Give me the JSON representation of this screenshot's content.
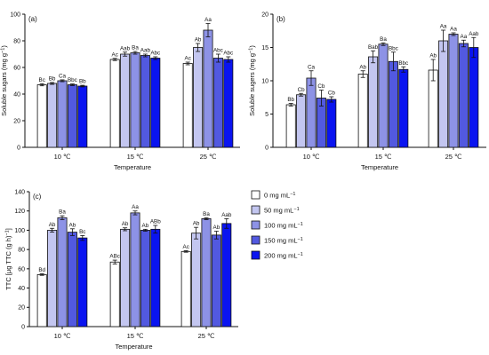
{
  "legend": {
    "entries": [
      {
        "label": "0 mg mL",
        "sup": "−1",
        "color": "#ffffff"
      },
      {
        "label": "50 mg mL",
        "sup": "−1",
        "color": "#c3c6f0"
      },
      {
        "label": "100 mg mL",
        "sup": "−1",
        "color": "#8d92e6"
      },
      {
        "label": "150 mg mL",
        "sup": "−1",
        "color": "#5259e0"
      },
      {
        "label": "200 mg mL",
        "sup": "−1",
        "color": "#0a14f0"
      }
    ]
  },
  "chart_data": [
    {
      "type": "bar",
      "panel_label": "(a)",
      "ylabel": "Soluble sugars (mg g",
      "ylabel_sup": "−1",
      "ylabel_end": ")",
      "xlabel": "Temperature",
      "categories": [
        "10 ℃",
        "15 ℃",
        "25 ℃"
      ],
      "ylim": [
        0,
        100
      ],
      "yticks": [
        0,
        20,
        40,
        60,
        80,
        100
      ],
      "series": [
        {
          "name": "0 mg mL−1",
          "values": [
            47,
            66,
            63
          ],
          "errors": [
            0.8,
            0.8,
            1.0
          ],
          "labels": [
            "Bc",
            "Ac",
            "Ac"
          ]
        },
        {
          "name": "50 mg mL−1",
          "values": [
            48,
            70,
            75
          ],
          "errors": [
            0.7,
            1.5,
            3.0
          ],
          "labels": [
            "Bb",
            "Aab",
            "Ab"
          ]
        },
        {
          "name": "100 mg mL−1",
          "values": [
            50,
            71,
            88
          ],
          "errors": [
            0.7,
            1.0,
            5.0
          ],
          "labels": [
            "Ca",
            "Ba",
            "Aa"
          ]
        },
        {
          "name": "150 mg mL−1",
          "values": [
            47,
            69,
            67
          ],
          "errors": [
            0.6,
            1.0,
            3.0
          ],
          "labels": [
            "Bbc",
            "Aab",
            "Abc"
          ]
        },
        {
          "name": "200 mg mL−1",
          "values": [
            46,
            67,
            66
          ],
          "errors": [
            0.6,
            1.0,
            2.0
          ],
          "labels": [
            "Bb",
            "Abc",
            "Abc"
          ]
        }
      ],
      "grid": false
    },
    {
      "type": "bar",
      "panel_label": "(b)",
      "ylabel": "Soluble sugers (mg g",
      "ylabel_sup": "−1",
      "ylabel_end": ")",
      "xlabel": "Temperature",
      "categories": [
        "10 ℃",
        "15 ℃",
        "25 ℃"
      ],
      "ylim": [
        0,
        20
      ],
      "yticks": [
        0,
        5,
        10,
        15,
        20
      ],
      "series": [
        {
          "name": "0 mg mL−1",
          "values": [
            6.4,
            11,
            11.6
          ],
          "errors": [
            0.2,
            0.5,
            1.6
          ],
          "labels": [
            "Bb",
            "Ab",
            "Ab"
          ]
        },
        {
          "name": "50 mg mL−1",
          "values": [
            7.9,
            13.6,
            16
          ],
          "errors": [
            0.2,
            0.9,
            1.6
          ],
          "labels": [
            "Cb",
            "Bab",
            "Aa"
          ]
        },
        {
          "name": "100 mg mL−1",
          "values": [
            10.4,
            15.5,
            17
          ],
          "errors": [
            1.1,
            0.2,
            0.2
          ],
          "labels": [
            "Ca",
            "Ba",
            "Aa"
          ]
        },
        {
          "name": "150 mg mL−1",
          "values": [
            7.4,
            12.9,
            15.6
          ],
          "errors": [
            1.2,
            1.4,
            0.5
          ],
          "labels": [
            "Cb",
            "Bbc",
            "Aa"
          ]
        },
        {
          "name": "200 mg mL−1",
          "values": [
            7.2,
            11.7,
            15
          ],
          "errors": [
            0.4,
            0.4,
            1.5
          ],
          "labels": [
            "Cb",
            "Bbc",
            "Aab"
          ]
        }
      ],
      "grid": false
    },
    {
      "type": "bar",
      "panel_label": "(c)",
      "ylabel": "TTC [μg TTC (g h)",
      "ylabel_sup": "−1",
      "ylabel_end": "]",
      "xlabel": "Temperature",
      "categories": [
        "10 ℃",
        "15 ℃",
        "25 ℃"
      ],
      "ylim": [
        0,
        140
      ],
      "yticks": [
        0,
        20,
        40,
        60,
        80,
        100,
        120,
        140
      ],
      "series": [
        {
          "name": "0 mg mL−1",
          "values": [
            54,
            67,
            78
          ],
          "errors": [
            0.8,
            2.0,
            0.8
          ],
          "labels": [
            "Bd",
            "ABc",
            "Ac"
          ]
        },
        {
          "name": "50 mg mL−1",
          "values": [
            100,
            101,
            97
          ],
          "errors": [
            2.0,
            1.5,
            6.0
          ],
          "labels": [
            "Ab",
            "Ab",
            "Ab"
          ]
        },
        {
          "name": "100 mg mL−1",
          "values": [
            113,
            118,
            112
          ],
          "errors": [
            2.0,
            2.0,
            1.0
          ],
          "labels": [
            "Ba",
            "Aa",
            "Ba"
          ]
        },
        {
          "name": "150 mg mL−1",
          "values": [
            98,
            100,
            95
          ],
          "errors": [
            3.5,
            1.0,
            4.0
          ],
          "labels": [
            "Ab",
            "Ab",
            "Ab"
          ]
        },
        {
          "name": "200 mg mL−1",
          "values": [
            92,
            101,
            107
          ],
          "errors": [
            2.5,
            4.0,
            5.0
          ],
          "labels": [
            "Bc",
            "ABb",
            "Aab"
          ]
        }
      ],
      "grid": false
    }
  ]
}
